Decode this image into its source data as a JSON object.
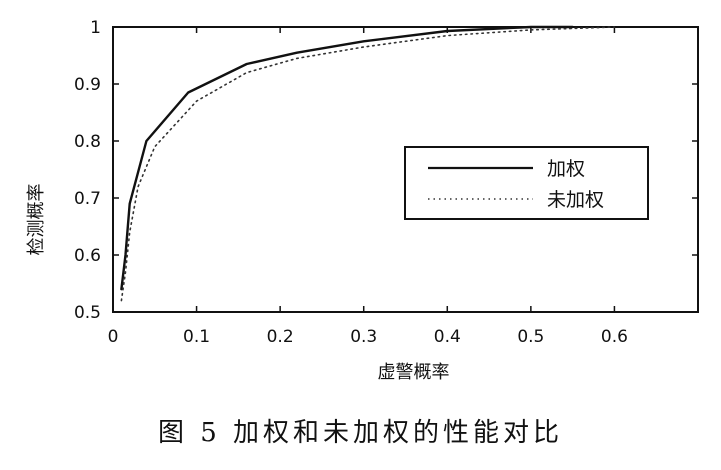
{
  "caption": "图 5   加权和未加权的性能对比",
  "chart_data": {
    "type": "line",
    "xlabel": "虚警概率",
    "ylabel": "检测概率",
    "xlim": [
      0,
      0.7
    ],
    "ylim": [
      0.5,
      1
    ],
    "xticks": [
      0,
      0.1,
      0.2,
      0.3,
      0.4,
      0.5,
      0.6
    ],
    "xtick_labels": [
      "0",
      "0.1",
      "0.2",
      "0.3",
      "0.4",
      "0.5",
      "0.6"
    ],
    "yticks": [
      0.5,
      0.6,
      0.7,
      0.8,
      0.9,
      1
    ],
    "ytick_labels": [
      "0.5",
      "0.6",
      "0.7",
      "0.8",
      "0.9",
      "1"
    ],
    "grid": false,
    "legend": "right",
    "series": [
      {
        "name": "加权",
        "style": "solid",
        "color": "#111111",
        "x": [
          0.01,
          0.015,
          0.02,
          0.04,
          0.09,
          0.16,
          0.22,
          0.3,
          0.4,
          0.5,
          0.55
        ],
        "y": [
          0.54,
          0.6,
          0.69,
          0.8,
          0.885,
          0.935,
          0.955,
          0.975,
          0.993,
          1.0,
          1.0
        ]
      },
      {
        "name": "未加权",
        "style": "dotted",
        "color": "#333333",
        "x": [
          0.01,
          0.015,
          0.02,
          0.03,
          0.05,
          0.1,
          0.16,
          0.22,
          0.3,
          0.4,
          0.5,
          0.6
        ],
        "y": [
          0.52,
          0.57,
          0.64,
          0.72,
          0.79,
          0.87,
          0.92,
          0.945,
          0.965,
          0.985,
          0.995,
          1.0
        ]
      }
    ]
  }
}
